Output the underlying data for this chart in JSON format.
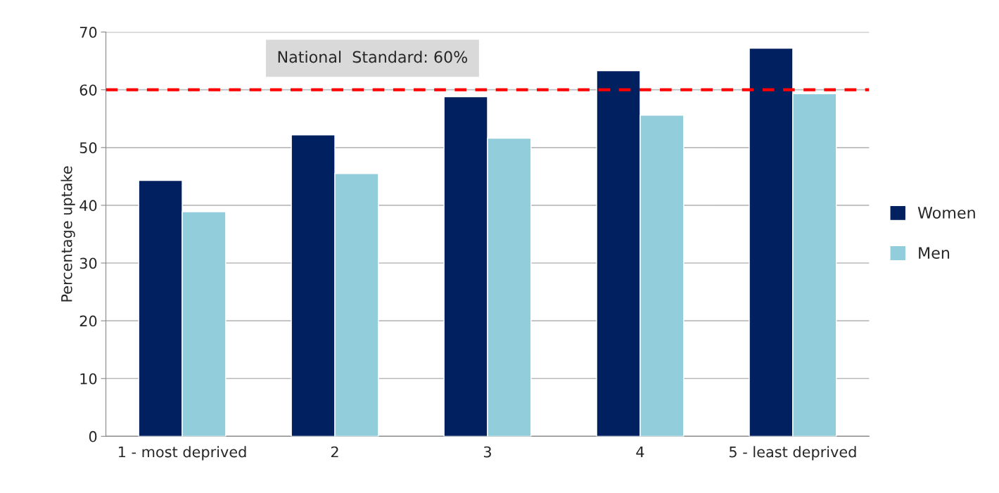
{
  "chart_data": {
    "type": "bar",
    "categories": [
      "1 - most deprived",
      "2",
      "3",
      "4",
      "5 - least deprived"
    ],
    "ylabel": "Percentage uptake",
    "series": [
      {
        "name": "Women",
        "color": "#002060",
        "values": [
          44.3,
          52.2,
          58.8,
          63.3,
          67.2
        ]
      },
      {
        "name": "Men",
        "color": "#92cddc",
        "values": [
          38.9,
          45.5,
          51.6,
          55.6,
          59.3
        ]
      }
    ],
    "ylim": [
      0,
      70
    ],
    "yticks": [
      0,
      10,
      20,
      30,
      40,
      50,
      60,
      70
    ],
    "grid": "y",
    "legend": "right",
    "ref_lines": [
      {
        "axis": "y",
        "value": 60,
        "label": "National  Standard: 60%",
        "color": "#ff0000",
        "line_style": "dashed"
      }
    ]
  }
}
